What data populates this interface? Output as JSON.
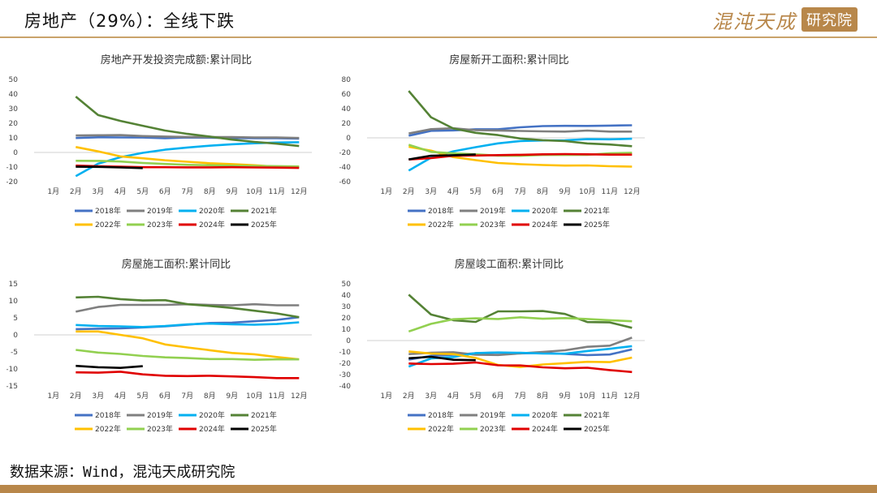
{
  "page": {
    "title": "房地产（29%）：全线下跌",
    "brand_text": "混沌天成",
    "brand_seal": "研究院",
    "source": "数据来源：Wind，混沌天成研究院"
  },
  "colors": {
    "2018年": "#4472c4",
    "2019年": "#7f7f7f",
    "2020年": "#00b0f0",
    "2021年": "#548235",
    "2022年": "#ffc000",
    "2023年": "#92d050",
    "2024年": "#e00000",
    "2025年": "#000000"
  },
  "chart_data": [
    {
      "type": "line",
      "title": "房地产开发投资完成额:累计同比",
      "categories": [
        "1月",
        "2月",
        "3月",
        "4月",
        "5月",
        "6月",
        "7月",
        "8月",
        "9月",
        "10月",
        "11月",
        "12月"
      ],
      "ylim": [
        -20,
        50
      ],
      "yticks": [
        -20,
        -10,
        0,
        10,
        20,
        30,
        40,
        50
      ],
      "grid": false,
      "legend_position": "bottom",
      "series": [
        {
          "name": "2018年",
          "values": [
            null,
            9.9,
            10.4,
            10.3,
            10.2,
            9.7,
            10.2,
            10.1,
            9.9,
            9.7,
            9.7,
            9.5
          ]
        },
        {
          "name": "2019年",
          "values": [
            null,
            11.6,
            11.8,
            11.9,
            11.2,
            10.9,
            10.6,
            10.5,
            10.5,
            10.3,
            10.2,
            9.9
          ]
        },
        {
          "name": "2020年",
          "values": [
            null,
            -16.3,
            -7.7,
            -3.3,
            -0.3,
            1.9,
            3.4,
            4.6,
            5.6,
            6.3,
            6.8,
            7.0
          ]
        },
        {
          "name": "2021年",
          "values": [
            null,
            38.3,
            25.6,
            21.6,
            18.3,
            15.0,
            12.7,
            10.9,
            8.8,
            7.2,
            6.0,
            4.4
          ]
        },
        {
          "name": "2022年",
          "values": [
            null,
            3.7,
            0.7,
            -2.7,
            -4.0,
            -5.4,
            -6.4,
            -7.4,
            -8.0,
            -8.8,
            -9.8,
            -10.0
          ]
        },
        {
          "name": "2023年",
          "values": [
            null,
            -5.7,
            -5.8,
            -6.2,
            -7.2,
            -7.9,
            -8.5,
            -8.8,
            -9.1,
            -9.3,
            -9.4,
            -9.6
          ]
        },
        {
          "name": "2024年",
          "values": [
            null,
            -9.0,
            -9.5,
            -9.8,
            -10.1,
            -10.1,
            -10.2,
            -10.2,
            -10.1,
            -10.3,
            -10.4,
            -10.6
          ]
        },
        {
          "name": "2025年",
          "values": [
            null,
            -9.8,
            -9.9,
            -10.3,
            -10.7,
            null,
            null,
            null,
            null,
            null,
            null,
            null
          ]
        }
      ]
    },
    {
      "type": "line",
      "title": "房屋新开工面积:累计同比",
      "categories": [
        "1月",
        "2月",
        "3月",
        "4月",
        "5月",
        "6月",
        "7月",
        "8月",
        "9月",
        "10月",
        "11月",
        "12月"
      ],
      "ylim": [
        -60,
        80
      ],
      "yticks": [
        -60,
        -40,
        -20,
        0,
        20,
        40,
        60,
        80
      ],
      "grid": false,
      "legend_position": "bottom",
      "series": [
        {
          "name": "2018年",
          "values": [
            null,
            2.9,
            9.7,
            10.2,
            11.8,
            11.8,
            14.4,
            16.1,
            16.4,
            16.3,
            16.8,
            17.2
          ]
        },
        {
          "name": "2019年",
          "values": [
            null,
            6.0,
            11.9,
            13.1,
            10.5,
            10.1,
            9.5,
            8.9,
            8.6,
            10.0,
            8.6,
            8.5
          ]
        },
        {
          "name": "2020年",
          "values": [
            null,
            -44.9,
            -27.2,
            -18.4,
            -12.8,
            -7.6,
            -4.5,
            -3.6,
            -3.4,
            -1.8,
            -2.0,
            -1.2
          ]
        },
        {
          "name": "2021年",
          "values": [
            null,
            64.3,
            28.2,
            12.8,
            6.9,
            3.8,
            -0.9,
            -3.2,
            -4.5,
            -7.7,
            -9.1,
            -11.4
          ]
        },
        {
          "name": "2022年",
          "values": [
            null,
            -12.2,
            -17.5,
            -26.3,
            -30.6,
            -34.4,
            -36.1,
            -37.2,
            -38.0,
            -37.8,
            -38.9,
            -39.4
          ]
        },
        {
          "name": "2023年",
          "values": [
            null,
            -9.4,
            -19.2,
            -21.2,
            -22.6,
            -24.3,
            -24.5,
            -23.4,
            -23.4,
            -23.2,
            -21.2,
            -20.4
          ]
        },
        {
          "name": "2024年",
          "values": [
            null,
            -29.7,
            -27.8,
            -24.6,
            -24.2,
            -23.7,
            -23.2,
            -22.5,
            -22.2,
            -22.6,
            -23.0,
            -23.0
          ]
        },
        {
          "name": "2025年",
          "values": [
            null,
            -29.6,
            -24.4,
            -23.8,
            -22.8,
            null,
            null,
            null,
            null,
            null,
            null,
            null
          ]
        }
      ]
    },
    {
      "type": "line",
      "title": "房屋施工面积:累计同比",
      "categories": [
        "1月",
        "2月",
        "3月",
        "4月",
        "5月",
        "6月",
        "7月",
        "8月",
        "9月",
        "10月",
        "11月",
        "12月"
      ],
      "ylim": [
        -15,
        15
      ],
      "yticks": [
        -15,
        -10,
        -5,
        0,
        5,
        10,
        15
      ],
      "grid": false,
      "legend_position": "bottom",
      "series": [
        {
          "name": "2018年",
          "values": [
            null,
            1.7,
            1.8,
            1.9,
            2.2,
            2.5,
            3.0,
            3.5,
            3.6,
            4.0,
            4.4,
            5.2
          ]
        },
        {
          "name": "2019年",
          "values": [
            null,
            6.8,
            8.2,
            8.8,
            8.8,
            8.8,
            9.0,
            8.8,
            8.7,
            9.0,
            8.7,
            8.7
          ]
        },
        {
          "name": "2020年",
          "values": [
            null,
            2.9,
            2.6,
            2.5,
            2.3,
            2.6,
            3.1,
            3.3,
            3.1,
            3.0,
            3.2,
            3.7
          ]
        },
        {
          "name": "2021年",
          "values": [
            null,
            11.0,
            11.2,
            10.5,
            10.1,
            10.2,
            9.0,
            8.5,
            7.9,
            7.1,
            6.3,
            5.2
          ]
        },
        {
          "name": "2022年",
          "values": [
            null,
            1.0,
            1.0,
            0.0,
            -1.0,
            -2.8,
            -3.7,
            -4.5,
            -5.3,
            -5.7,
            -6.5,
            -7.2
          ]
        },
        {
          "name": "2023年",
          "values": [
            null,
            -4.4,
            -5.2,
            -5.6,
            -6.2,
            -6.6,
            -6.8,
            -7.1,
            -7.1,
            -7.3,
            -7.2,
            -7.2
          ]
        },
        {
          "name": "2024年",
          "values": [
            null,
            -11.0,
            -11.1,
            -10.8,
            -11.6,
            -12.0,
            -12.1,
            -12.0,
            -12.2,
            -12.4,
            -12.7,
            -12.7
          ]
        },
        {
          "name": "2025年",
          "values": [
            null,
            -9.1,
            -9.5,
            -9.7,
            -9.2,
            null,
            null,
            null,
            null,
            null,
            null,
            null
          ]
        }
      ]
    },
    {
      "type": "line",
      "title": "房屋竣工面积:累计同比",
      "categories": [
        "1月",
        "2月",
        "3月",
        "4月",
        "5月",
        "6月",
        "7月",
        "8月",
        "9月",
        "10月",
        "11月",
        "12月"
      ],
      "ylim": [
        -40,
        50
      ],
      "yticks": [
        -40,
        -30,
        -20,
        -10,
        0,
        10,
        20,
        30,
        40,
        50
      ],
      "grid": false,
      "legend_position": "bottom",
      "series": [
        {
          "name": "2018年",
          "values": [
            null,
            -16.8,
            -13.5,
            -12.5,
            -11.2,
            -10.6,
            -11.3,
            -10.9,
            -11.8,
            -12.8,
            -12.3,
            -7.8
          ]
        },
        {
          "name": "2019年",
          "values": [
            null,
            -11.9,
            -10.8,
            -10.3,
            -12.4,
            -12.7,
            -11.3,
            -10.0,
            -8.6,
            -5.5,
            -4.5,
            2.6
          ]
        },
        {
          "name": "2020年",
          "values": [
            null,
            -22.9,
            -15.8,
            -14.5,
            -11.0,
            -10.5,
            -10.8,
            -11.4,
            -11.6,
            -9.2,
            -7.3,
            -4.9
          ]
        },
        {
          "name": "2021年",
          "values": [
            null,
            40.4,
            22.9,
            17.9,
            16.4,
            25.7,
            25.7,
            26.0,
            23.4,
            16.3,
            16.0,
            11.2
          ]
        },
        {
          "name": "2022年",
          "values": [
            null,
            -9.6,
            -11.5,
            -11.9,
            -15.3,
            -21.5,
            -23.3,
            -21.1,
            -19.9,
            -18.7,
            -19.0,
            -15.0
          ]
        },
        {
          "name": "2023年",
          "values": [
            null,
            8.0,
            14.7,
            18.8,
            19.6,
            19.0,
            20.5,
            19.2,
            19.8,
            19.0,
            17.9,
            17.0
          ]
        },
        {
          "name": "2024年",
          "values": [
            null,
            -20.2,
            -20.7,
            -20.4,
            -19.3,
            -21.8,
            -21.9,
            -23.6,
            -24.4,
            -23.9,
            -26.0,
            -27.7
          ]
        },
        {
          "name": "2025年",
          "values": [
            null,
            -15.6,
            -14.3,
            -16.9,
            -17.3,
            null,
            null,
            null,
            null,
            null,
            null,
            null
          ]
        }
      ]
    }
  ]
}
